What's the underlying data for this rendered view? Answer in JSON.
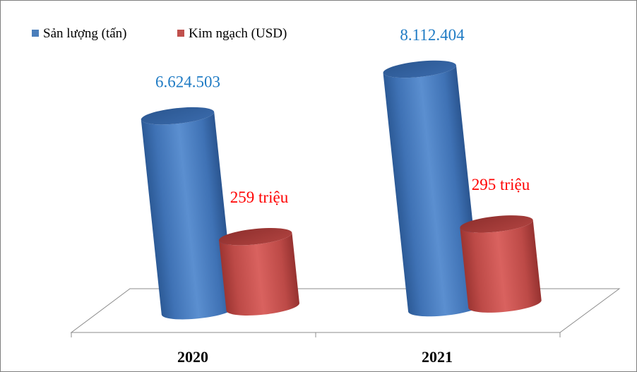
{
  "chart_data": {
    "type": "bar",
    "style": "3d-cylinder",
    "categories": [
      "2020",
      "2021"
    ],
    "series": [
      {
        "name": "Sản lượng (tấn)",
        "values": [
          6624503,
          8112404
        ],
        "labels": [
          "6.624.503",
          "8.112.404"
        ],
        "color": "#4a7ebb",
        "label_color": "#1f7bc4"
      },
      {
        "name": "Kim ngạch (USD)",
        "values": [
          259000000,
          295000000
        ],
        "labels": [
          "259 triệu",
          "295 triệu"
        ],
        "color": "#c0504d",
        "label_color": "#ff0000"
      }
    ],
    "legend_position": "top-left",
    "gridlines": false
  }
}
